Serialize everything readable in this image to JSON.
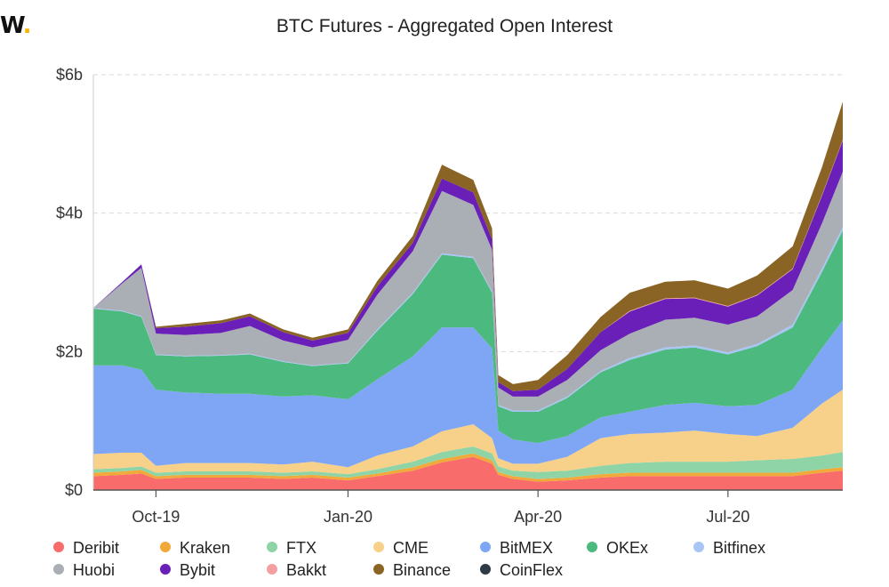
{
  "logo": {
    "text": "W",
    "dot": "."
  },
  "chart_data": {
    "type": "area",
    "title": "BTC Futures - Aggregated Open Interest",
    "stacked": true,
    "x": [
      "2019-09-01",
      "2019-09-15",
      "2019-09-24",
      "2019-10-01",
      "2019-10-15",
      "2019-11-01",
      "2019-11-15",
      "2019-12-01",
      "2019-12-15",
      "2020-01-01",
      "2020-01-15",
      "2020-02-01",
      "2020-02-15",
      "2020-03-01",
      "2020-03-10",
      "2020-03-13",
      "2020-03-20",
      "2020-04-01",
      "2020-04-15",
      "2020-05-01",
      "2020-05-15",
      "2020-06-01",
      "2020-06-15",
      "2020-07-01",
      "2020-07-15",
      "2020-08-01",
      "2020-08-15",
      "2020-08-25"
    ],
    "x_ticks": [
      "Oct-19",
      "Jan-20",
      "Apr-20",
      "Jul-20"
    ],
    "x_tick_dates": [
      "2019-10-01",
      "2020-01-01",
      "2020-04-01",
      "2020-07-01"
    ],
    "y_ticks": [
      "$0",
      "$2b",
      "$4b",
      "$6b"
    ],
    "y_tick_values": [
      0,
      2,
      4,
      6
    ],
    "ylim": [
      0,
      6
    ],
    "unit": "billion USD",
    "series": [
      {
        "name": "Deribit",
        "color": "#f86c6b",
        "values": [
          0.2,
          0.22,
          0.24,
          0.16,
          0.18,
          0.18,
          0.18,
          0.16,
          0.18,
          0.14,
          0.2,
          0.28,
          0.4,
          0.48,
          0.38,
          0.22,
          0.16,
          0.12,
          0.14,
          0.18,
          0.2,
          0.2,
          0.2,
          0.2,
          0.2,
          0.2,
          0.25,
          0.28
        ]
      },
      {
        "name": "Kraken",
        "color": "#f1a93a",
        "values": [
          0.05,
          0.05,
          0.05,
          0.04,
          0.04,
          0.04,
          0.04,
          0.04,
          0.04,
          0.04,
          0.04,
          0.05,
          0.05,
          0.05,
          0.05,
          0.04,
          0.04,
          0.04,
          0.04,
          0.05,
          0.05,
          0.05,
          0.05,
          0.05,
          0.05,
          0.05,
          0.05,
          0.05
        ]
      },
      {
        "name": "FTX",
        "color": "#8fd4a6",
        "values": [
          0.05,
          0.05,
          0.05,
          0.05,
          0.05,
          0.05,
          0.05,
          0.05,
          0.05,
          0.05,
          0.06,
          0.08,
          0.1,
          0.1,
          0.1,
          0.08,
          0.08,
          0.1,
          0.1,
          0.12,
          0.14,
          0.16,
          0.16,
          0.16,
          0.18,
          0.2,
          0.2,
          0.22
        ]
      },
      {
        "name": "CME",
        "color": "#f7d08a",
        "values": [
          0.22,
          0.22,
          0.2,
          0.1,
          0.12,
          0.12,
          0.12,
          0.12,
          0.14,
          0.1,
          0.2,
          0.22,
          0.3,
          0.32,
          0.22,
          0.12,
          0.1,
          0.12,
          0.2,
          0.4,
          0.42,
          0.42,
          0.45,
          0.4,
          0.35,
          0.45,
          0.75,
          0.9
        ]
      },
      {
        "name": "BitMEX",
        "color": "#7ea6f4",
        "values": [
          1.28,
          1.26,
          1.2,
          1.1,
          1.02,
          1.0,
          1.0,
          0.98,
          0.96,
          0.98,
          1.1,
          1.3,
          1.5,
          1.4,
          1.3,
          0.4,
          0.35,
          0.3,
          0.3,
          0.3,
          0.32,
          0.4,
          0.4,
          0.4,
          0.45,
          0.55,
          0.8,
          1.0
        ]
      },
      {
        "name": "OKEx",
        "color": "#4cba7e",
        "values": [
          0.82,
          0.78,
          0.76,
          0.5,
          0.52,
          0.55,
          0.57,
          0.5,
          0.42,
          0.52,
          0.7,
          0.9,
          1.05,
          1.0,
          0.8,
          0.35,
          0.4,
          0.45,
          0.55,
          0.65,
          0.75,
          0.8,
          0.8,
          0.75,
          0.85,
          0.9,
          1.1,
          1.3
        ]
      },
      {
        "name": "Bitfinex",
        "color": "#a9c5f6",
        "values": [
          0.01,
          0.01,
          0.01,
          0.01,
          0.01,
          0.01,
          0.01,
          0.01,
          0.01,
          0.01,
          0.02,
          0.02,
          0.02,
          0.02,
          0.02,
          0.02,
          0.02,
          0.02,
          0.02,
          0.02,
          0.03,
          0.03,
          0.03,
          0.03,
          0.03,
          0.04,
          0.05,
          0.05
        ]
      },
      {
        "name": "Huobi",
        "color": "#a9afb4",
        "values": [
          0.0,
          0.4,
          0.7,
          0.3,
          0.3,
          0.32,
          0.4,
          0.3,
          0.26,
          0.33,
          0.5,
          0.6,
          0.9,
          0.75,
          0.6,
          0.25,
          0.2,
          0.2,
          0.24,
          0.3,
          0.35,
          0.4,
          0.4,
          0.4,
          0.4,
          0.5,
          0.65,
          0.8
        ]
      },
      {
        "name": "Bybit",
        "color": "#6a1fb8",
        "values": [
          0.0,
          0.02,
          0.05,
          0.08,
          0.12,
          0.14,
          0.14,
          0.12,
          0.1,
          0.1,
          0.12,
          0.12,
          0.18,
          0.18,
          0.15,
          0.08,
          0.08,
          0.1,
          0.16,
          0.26,
          0.32,
          0.3,
          0.28,
          0.26,
          0.3,
          0.3,
          0.4,
          0.45
        ]
      },
      {
        "name": "Bakkt",
        "color": "#f4a0a0",
        "values": [
          0.0,
          0.0,
          0.0,
          0.0,
          0.0,
          0.0,
          0.0,
          0.0,
          0.0,
          0.0,
          0.0,
          0.0,
          0.0,
          0.0,
          0.0,
          0.0,
          0.0,
          0.0,
          0.0,
          0.0,
          0.01,
          0.01,
          0.01,
          0.01,
          0.01,
          0.01,
          0.01,
          0.01
        ]
      },
      {
        "name": "Binance",
        "color": "#8a6424",
        "values": [
          0.0,
          0.0,
          0.0,
          0.02,
          0.04,
          0.04,
          0.04,
          0.04,
          0.04,
          0.05,
          0.08,
          0.1,
          0.2,
          0.18,
          0.16,
          0.1,
          0.1,
          0.14,
          0.2,
          0.22,
          0.26,
          0.24,
          0.25,
          0.25,
          0.28,
          0.32,
          0.4,
          0.55
        ]
      },
      {
        "name": "CoinFlex",
        "color": "#2e3a46",
        "values": [
          0,
          0,
          0,
          0,
          0,
          0,
          0,
          0,
          0,
          0,
          0,
          0,
          0,
          0,
          0,
          0,
          0,
          0,
          0,
          0,
          0,
          0,
          0,
          0,
          0,
          0,
          0,
          0
        ]
      }
    ]
  }
}
